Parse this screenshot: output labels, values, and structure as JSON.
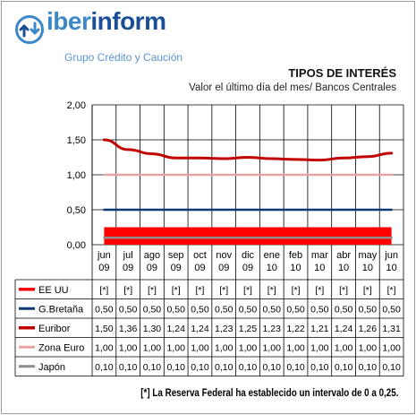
{
  "header": {
    "brand_part1": "iber",
    "brand_part2": "inform",
    "tagline": "Grupo Crédito y Caución",
    "title": "TIPOS DE INTERÉS",
    "subtitle": "Valor el último  día del mes/ Bancos Centrales"
  },
  "footnote": "[*] La Reserva Federal ha establecido un intervalo de 0 a 0,25.",
  "chart_data": {
    "type": "line",
    "categories": [
      [
        "jun",
        "09"
      ],
      [
        "jul",
        "09"
      ],
      [
        "ago",
        "09"
      ],
      [
        "sep",
        "09"
      ],
      [
        "oct",
        "09"
      ],
      [
        "nov",
        "09"
      ],
      [
        "dic",
        "09"
      ],
      [
        "ene",
        "10"
      ],
      [
        "feb",
        "10"
      ],
      [
        "mar",
        "10"
      ],
      [
        "abr",
        "10"
      ],
      [
        "may",
        "10"
      ],
      [
        "jun",
        "10"
      ]
    ],
    "ylim": [
      0,
      2
    ],
    "yticks": [
      "0,00",
      "0,50",
      "1,00",
      "1,50",
      "2,00"
    ],
    "ytick_values": [
      0,
      0.5,
      1,
      1.5,
      2
    ],
    "grid": true,
    "series": [
      {
        "name": "EE UU",
        "color": "#ff0000",
        "band": [
          0,
          0.25
        ],
        "values": [
          0.125,
          0.125,
          0.125,
          0.125,
          0.125,
          0.125,
          0.125,
          0.125,
          0.125,
          0.125,
          0.125,
          0.125,
          0.125
        ],
        "labels": [
          "[*]",
          "[*]",
          "[*]",
          "[*]",
          "[*]",
          "[*]",
          "[*]",
          "[*]",
          "[*]",
          "[*]",
          "[*]",
          "[*]",
          "[*]"
        ]
      },
      {
        "name": "G.Bretaña",
        "color": "#0d3a75",
        "values": [
          0.5,
          0.5,
          0.5,
          0.5,
          0.5,
          0.5,
          0.5,
          0.5,
          0.5,
          0.5,
          0.5,
          0.5,
          0.5
        ],
        "labels": [
          "0,50",
          "0,50",
          "0,50",
          "0,50",
          "0,50",
          "0,50",
          "0,50",
          "0,50",
          "0,50",
          "0,50",
          "0,50",
          "0,50",
          "0,50"
        ]
      },
      {
        "name": "Euribor",
        "color": "#c00000",
        "values": [
          1.5,
          1.36,
          1.3,
          1.24,
          1.24,
          1.23,
          1.25,
          1.23,
          1.22,
          1.21,
          1.24,
          1.26,
          1.31
        ],
        "labels": [
          "1,50",
          "1,36",
          "1,30",
          "1,24",
          "1,24",
          "1,23",
          "1,25",
          "1,23",
          "1,22",
          "1,21",
          "1,24",
          "1,26",
          "1,31"
        ]
      },
      {
        "name": "Zona Euro",
        "color": "#e6a4a4",
        "values": [
          1,
          1,
          1,
          1,
          1,
          1,
          1,
          1,
          1,
          1,
          1,
          1,
          1
        ],
        "labels": [
          "1,00",
          "1,00",
          "1,00",
          "1,00",
          "1,00",
          "1,00",
          "1,00",
          "1,00",
          "1,00",
          "1,00",
          "1,00",
          "1,00",
          "1,00"
        ]
      },
      {
        "name": "Japón",
        "color": "#8c8c8c",
        "values": [
          0.1,
          0.1,
          0.1,
          0.1,
          0.1,
          0.1,
          0.1,
          0.1,
          0.1,
          0.1,
          0.1,
          0.1,
          0.1
        ],
        "labels": [
          "0,10",
          "0,10",
          "0,10",
          "0,10",
          "0,10",
          "0,10",
          "0,10",
          "0,10",
          "0,10",
          "0,10",
          "0,10",
          "0,10",
          "0,10"
        ]
      }
    ]
  }
}
